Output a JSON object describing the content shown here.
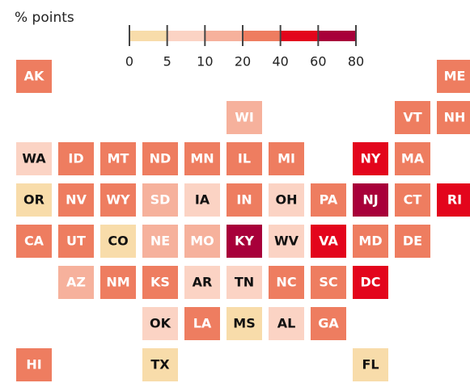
{
  "chart_data": {
    "type": "tilemap",
    "legend_title": "% points",
    "legend_ticks": [
      0,
      5,
      10,
      20,
      40,
      60,
      80
    ],
    "bin_colors": [
      "#f8dcaa",
      "#fbd3c4",
      "#f6b19c",
      "#ee7d60",
      "#e3051c",
      "#a8003a"
    ],
    "categories": [
      "AK",
      "ME",
      "WI",
      "VT",
      "NH",
      "WA",
      "ID",
      "MT",
      "ND",
      "MN",
      "IL",
      "MI",
      "NY",
      "MA",
      "OR",
      "NV",
      "WY",
      "SD",
      "IA",
      "IN",
      "OH",
      "PA",
      "NJ",
      "CT",
      "RI",
      "CA",
      "UT",
      "CO",
      "NE",
      "MO",
      "KY",
      "WV",
      "VA",
      "MD",
      "DE",
      "AZ",
      "NM",
      "KS",
      "AR",
      "TN",
      "NC",
      "SC",
      "DC",
      "OK",
      "LA",
      "MS",
      "AL",
      "GA",
      "HI",
      "TX",
      "FL"
    ],
    "values": [
      30,
      30,
      15,
      30,
      30,
      8,
      30,
      30,
      30,
      30,
      30,
      30,
      50,
      30,
      3,
      30,
      30,
      15,
      8,
      30,
      8,
      30,
      70,
      30,
      50,
      30,
      30,
      3,
      15,
      15,
      70,
      8,
      50,
      30,
      30,
      15,
      30,
      30,
      8,
      8,
      30,
      30,
      50,
      8,
      30,
      3,
      8,
      30,
      30,
      3,
      3
    ]
  }
}
